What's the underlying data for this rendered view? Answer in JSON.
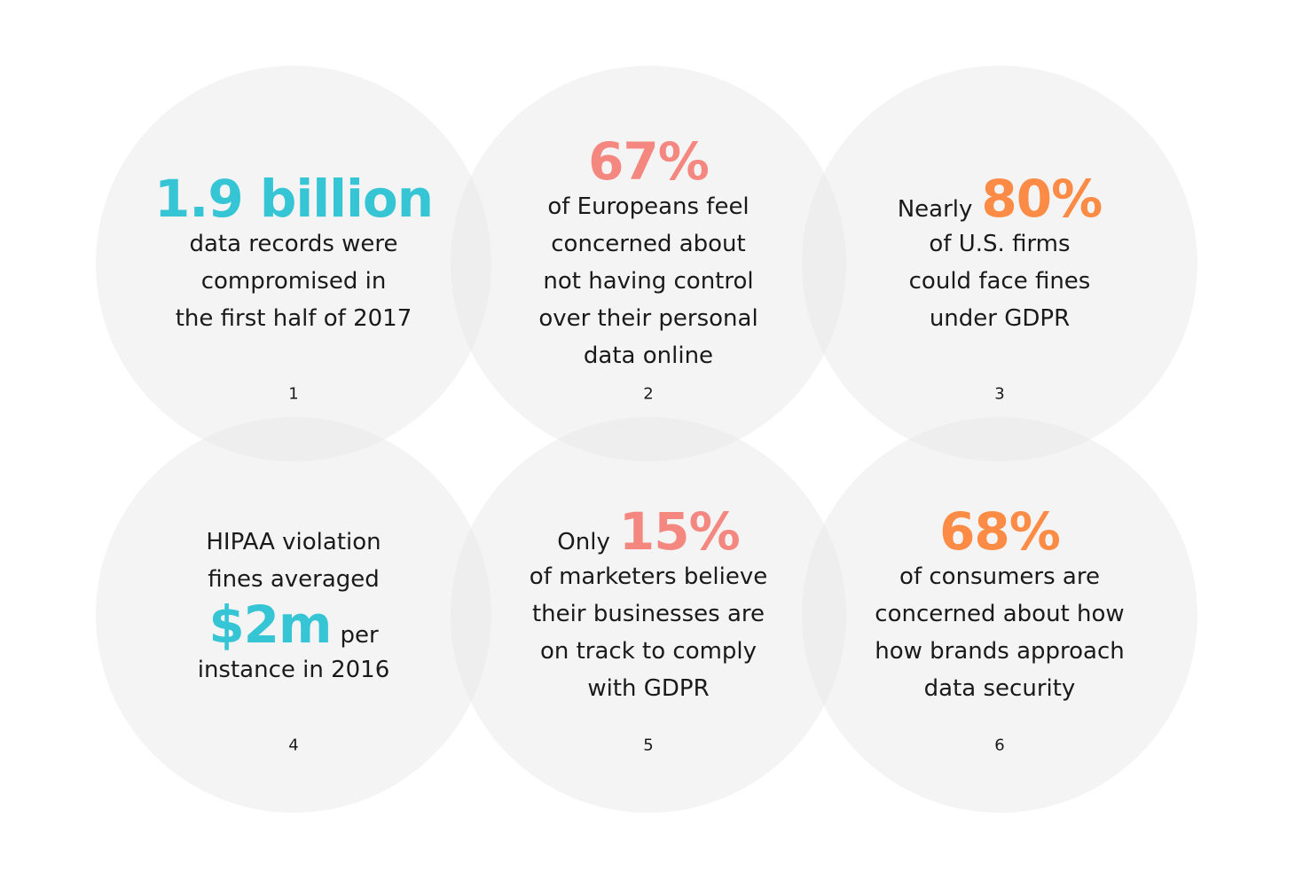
{
  "stats": [
    {
      "before": [],
      "highlight": "1.9 billion",
      "color": "#35c5d5",
      "after": [
        "data records were",
        "compromised in",
        "the first half of 2017"
      ],
      "number": "1"
    },
    {
      "before": [],
      "highlight": "67%",
      "color": "#f4877f",
      "after": [
        "of Europeans feel",
        "concerned about",
        "not having control",
        "over their personal",
        "data online"
      ],
      "number": "2"
    },
    {
      "before": [],
      "prefix": "Nearly",
      "highlight": "80%",
      "color": "#fb8b45",
      "after": [
        "of U.S. firms",
        "could face fines",
        "under GDPR"
      ],
      "number": "3"
    },
    {
      "before": [
        "HIPAA violation",
        "fines averaged"
      ],
      "highlight": "$2m",
      "suffix": "per",
      "color": "#35c5d5",
      "after": [
        "instance in 2016"
      ],
      "number": "4"
    },
    {
      "before": [],
      "prefix": "Only",
      "highlight": "15%",
      "color": "#f4877f",
      "after": [
        "of marketers believe",
        "their businesses are",
        "on track to comply",
        "with GDPR"
      ],
      "number": "5"
    },
    {
      "before": [],
      "highlight": "68%",
      "color": "#fb8b45",
      "after": [
        "of consumers are",
        "concerned about how",
        "how brands approach",
        "data security"
      ],
      "number": "6"
    }
  ]
}
